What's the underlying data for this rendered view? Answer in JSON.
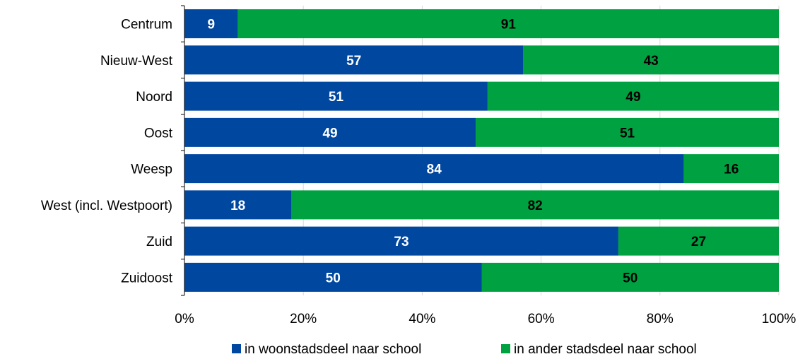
{
  "chart_data": {
    "type": "bar",
    "orientation": "horizontal",
    "stacked": true,
    "categories": [
      "Centrum",
      "Nieuw-West",
      "Noord",
      "Oost",
      "Weesp",
      "West (incl. Westpoort)",
      "Zuid",
      "Zuidoost"
    ],
    "series": [
      {
        "name": "in woonstadsdeel naar school",
        "color": "#0047A0",
        "label_color": "#ffffff",
        "values": [
          9,
          57,
          51,
          49,
          84,
          18,
          73,
          50
        ]
      },
      {
        "name": "in ander stadsdeel naar school",
        "color": "#00A140",
        "label_color": "#000000",
        "values": [
          91,
          43,
          49,
          51,
          16,
          82,
          27,
          50
        ]
      }
    ],
    "xlim": [
      0,
      100
    ],
    "x_ticks": [
      "0%",
      "20%",
      "40%",
      "60%",
      "80%",
      "100%"
    ],
    "grid": true,
    "legend_position": "bottom"
  }
}
